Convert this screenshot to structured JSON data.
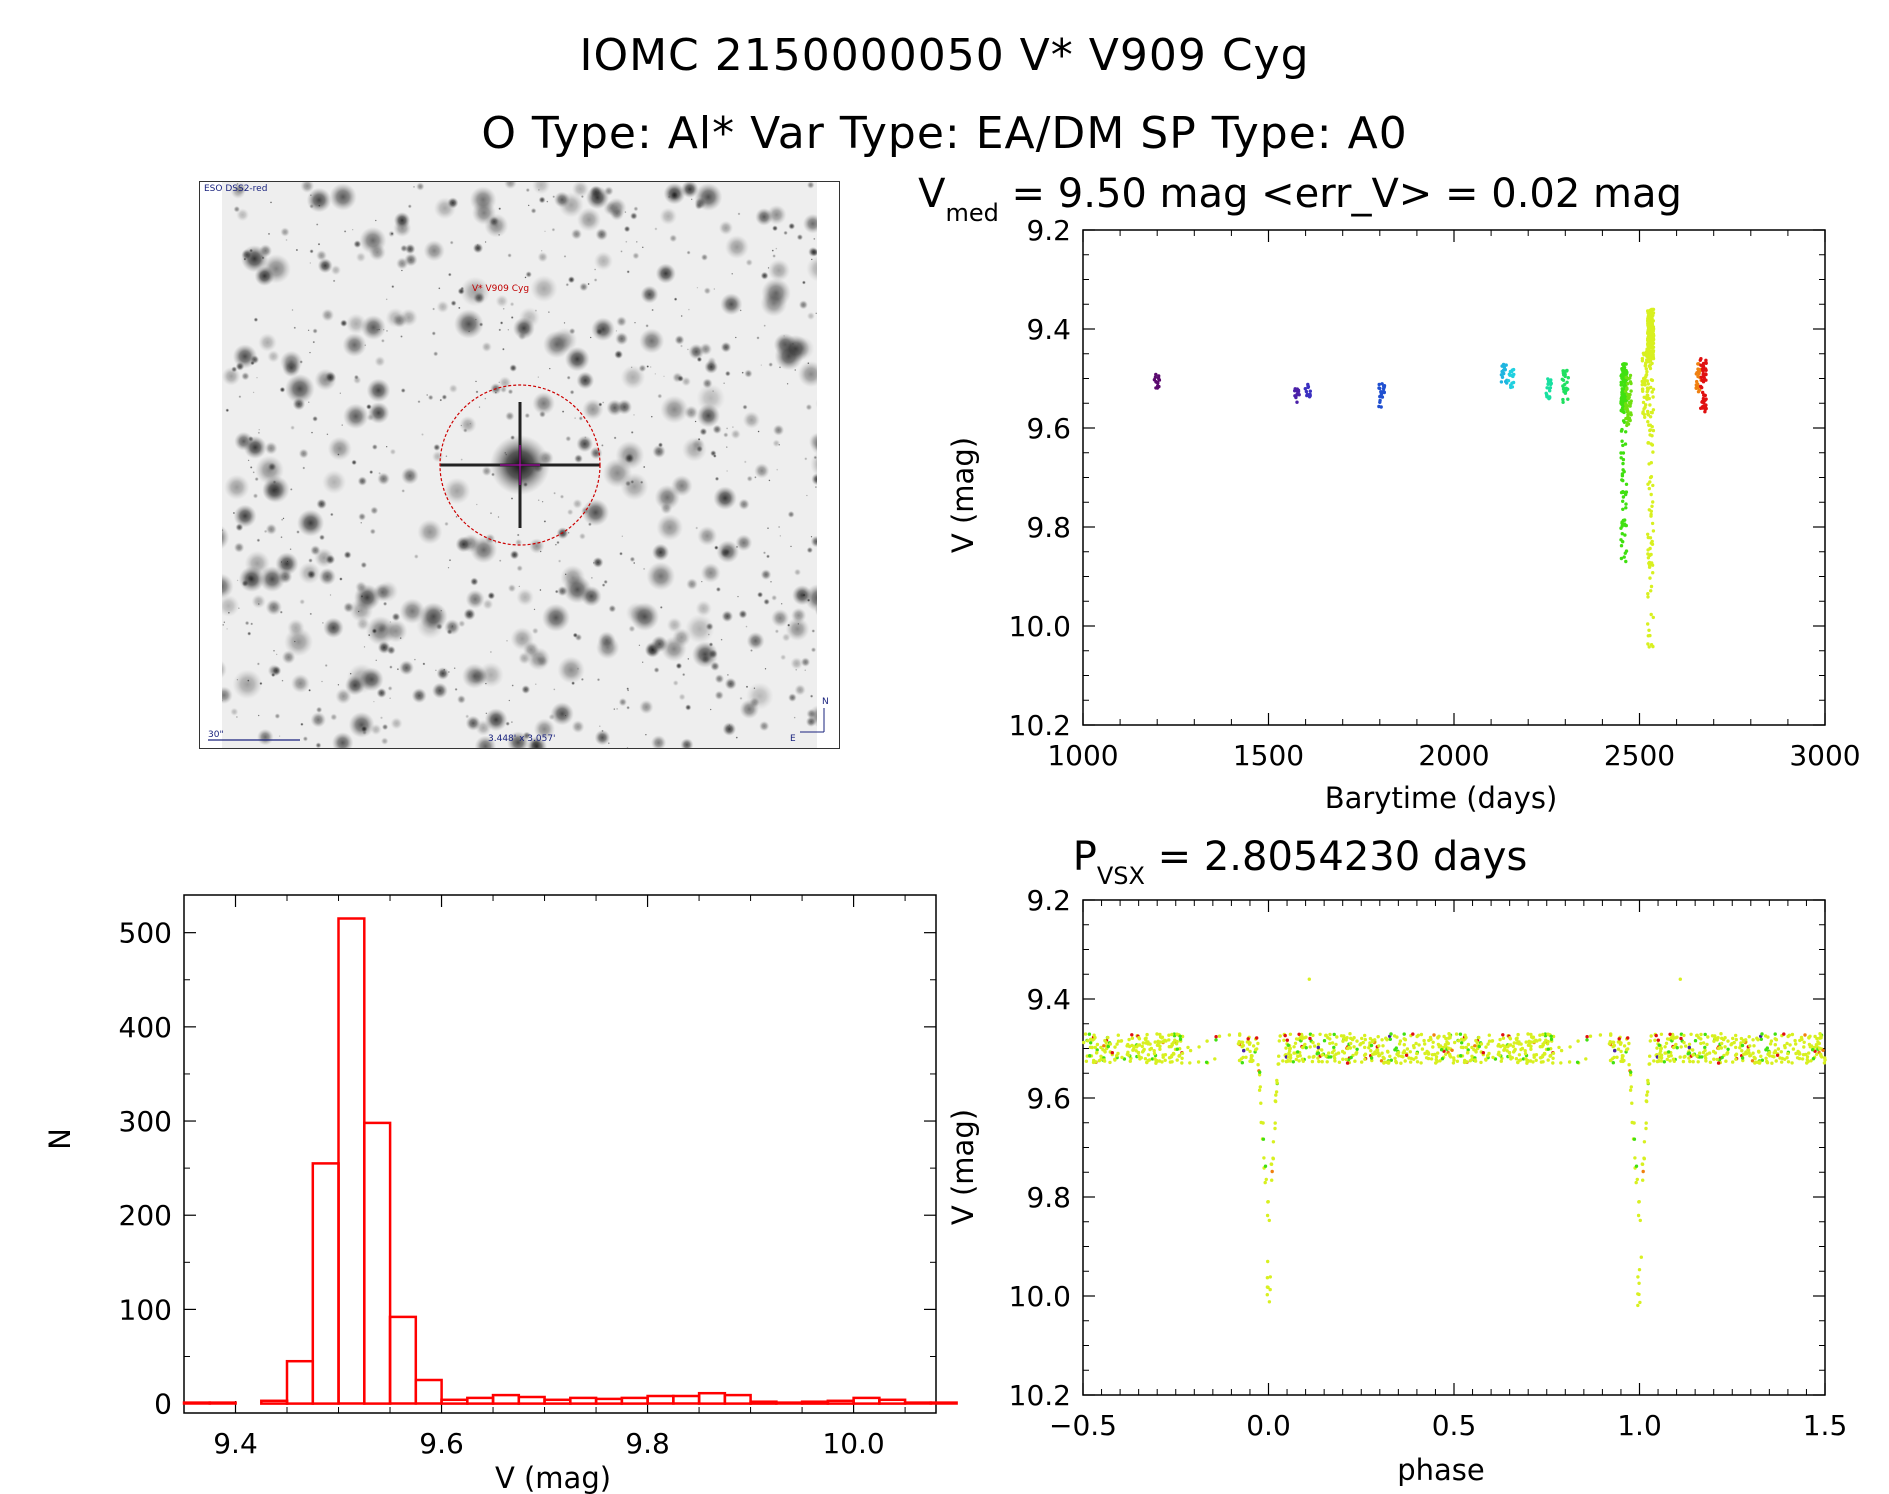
{
  "header": {
    "line1": "IOMC 2150000050   V* V909 Cyg",
    "line2": "O Type: Al*  Var Type: EA/DM  SP Type: A0"
  },
  "thumbnail": {
    "survey_label": "ESO DSS2-red",
    "target_label": "V* V909 Cyg",
    "scale_label": "30\"",
    "fov_label": "3.448' x 3.057'",
    "north_label": "N",
    "east_label": "E"
  },
  "chart_data": [
    {
      "type": "scatter",
      "title_main": "V",
      "title_sub": "med",
      "title_rest": " = 9.50 mag <err_V> = 0.02 mag",
      "xlabel": "Barytime (days)",
      "ylabel": "V (mag)",
      "xlim": [
        1000,
        3000
      ],
      "ylim": [
        10.2,
        9.2
      ],
      "xticks": [
        "1000",
        "1500",
        "2000",
        "2500",
        "3000"
      ],
      "yticks": [
        "9.2",
        "9.4",
        "9.6",
        "9.8",
        "10.0",
        "10.2"
      ],
      "groups": [
        {
          "x": 1200,
          "ymin": 9.48,
          "ymax": 9.52,
          "color": "#5a0a6e"
        },
        {
          "x": 1575,
          "ymin": 9.52,
          "ymax": 9.55,
          "color": "#4a1fa8"
        },
        {
          "x": 1605,
          "ymin": 9.51,
          "ymax": 9.54,
          "color": "#3a2fc0"
        },
        {
          "x": 1805,
          "ymin": 9.51,
          "ymax": 9.56,
          "color": "#1f4fd0"
        },
        {
          "x": 2135,
          "ymin": 9.47,
          "ymax": 9.51,
          "color": "#1fb5e0"
        },
        {
          "x": 2155,
          "ymin": 9.48,
          "ymax": 9.52,
          "color": "#20d0e0"
        },
        {
          "x": 2255,
          "ymin": 9.5,
          "ymax": 9.55,
          "color": "#18e0a0"
        },
        {
          "x": 2300,
          "ymin": 9.48,
          "ymax": 9.55,
          "color": "#20e060"
        },
        {
          "x": 2458,
          "ymin": 9.47,
          "ymax": 9.87,
          "color": "#40e010"
        },
        {
          "x": 2470,
          "ymin": 9.49,
          "ymax": 9.6,
          "color": "#70e010"
        },
        {
          "x": 2515,
          "ymin": 9.44,
          "ymax": 9.58,
          "color": "#d8f020"
        },
        {
          "x": 2530,
          "ymin": 9.36,
          "ymax": 10.05,
          "color": "#d8f020"
        },
        {
          "x": 2660,
          "ymin": 9.47,
          "ymax": 9.53,
          "color": "#f08010"
        },
        {
          "x": 2672,
          "ymin": 9.45,
          "ymax": 9.57,
          "color": "#e01010"
        }
      ]
    },
    {
      "type": "scatter",
      "title_main": "P",
      "title_sub": "VSX",
      "title_rest": " = 2.8054230 days",
      "xlabel": "phase",
      "ylabel": "V (mag)",
      "xlim": [
        -0.5,
        1.5
      ],
      "ylim": [
        10.2,
        9.2
      ],
      "xticks": [
        "−0.5",
        "0.0",
        "0.5",
        "1.0",
        "1.5"
      ],
      "yticks": [
        "9.2",
        "9.4",
        "9.6",
        "9.8",
        "10.0",
        "10.2"
      ],
      "period": 2.805423,
      "outliers": [
        {
          "phase": -0.005,
          "v": 9.97
        },
        {
          "phase": 0.11,
          "v": 9.36
        }
      ]
    },
    {
      "type": "bar",
      "subtype": "histogram",
      "xlabel": "V (mag)",
      "ylabel": "N",
      "xlim": [
        9.35,
        10.08
      ],
      "ylim": [
        -10,
        540
      ],
      "xticks": [
        "9.4",
        "9.6",
        "9.8",
        "10.0"
      ],
      "yticks": [
        "0",
        "100",
        "200",
        "300",
        "400",
        "500"
      ],
      "bin_width": 0.025,
      "bins_start": 9.35,
      "counts": [
        1,
        1,
        0,
        3,
        45,
        255,
        515,
        298,
        92,
        25,
        4,
        6,
        9,
        7,
        4,
        6,
        5,
        6,
        8,
        8,
        11,
        9,
        2,
        1,
        2,
        3,
        6,
        4,
        1,
        1
      ],
      "bar_color": "#ff0000"
    }
  ]
}
